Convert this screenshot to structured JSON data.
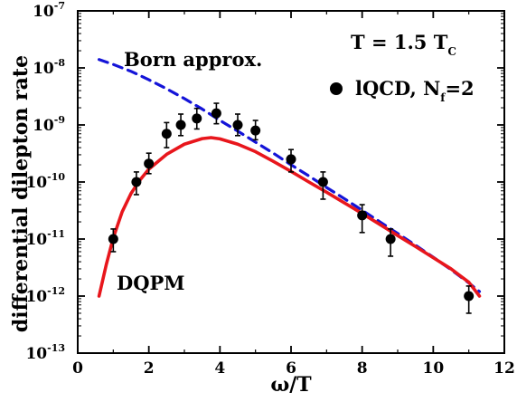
{
  "chart_data": {
    "type": "line",
    "title": "",
    "xlabel": "ω/T",
    "ylabel": "differential dilepton rate",
    "xlim": [
      0,
      12
    ],
    "ylim": [
      1e-13,
      1e-07
    ],
    "y_scale": "log",
    "grid": false,
    "x_ticks": [
      0,
      2,
      4,
      6,
      8,
      10,
      12
    ],
    "x_tick_labels": [
      "0",
      "2",
      "4",
      "6",
      "8",
      "10",
      "12"
    ],
    "y_ticks": [
      1e-13,
      1e-12,
      1e-11,
      1e-10,
      1e-09,
      1e-08,
      1e-07
    ],
    "y_tick_labels": [
      {
        "base": "10",
        "exp": "-13"
      },
      {
        "base": "10",
        "exp": "-12"
      },
      {
        "base": "10",
        "exp": "-11"
      },
      {
        "base": "10",
        "exp": "-10"
      },
      {
        "base": "10",
        "exp": "-9"
      },
      {
        "base": "10",
        "exp": "-8"
      },
      {
        "base": "10",
        "exp": "-7"
      }
    ],
    "series": [
      {
        "name": "Born approx.",
        "style": "dashed",
        "color": "#1414d8",
        "x": [
          0.6,
          1.0,
          1.5,
          2.0,
          2.5,
          3.0,
          3.5,
          4.0,
          4.5,
          5.0,
          5.5,
          6.0,
          6.5,
          7.0,
          7.5,
          8.0,
          8.5,
          9.0,
          9.5,
          10.0,
          10.5,
          11.0,
          11.3
        ],
        "y": [
          1.4e-08,
          1.15e-08,
          8.7e-09,
          6.2e-09,
          4.3e-09,
          2.9e-09,
          1.9e-09,
          1.2e-09,
          7.8e-10,
          5e-10,
          3.2e-10,
          2e-10,
          1.28e-10,
          8e-11,
          5.1e-11,
          3.2e-11,
          2e-11,
          1.25e-11,
          7.8e-12,
          4.8e-12,
          2.9e-12,
          1.7e-12,
          1.2e-12
        ]
      },
      {
        "name": "DQPM",
        "style": "solid",
        "color": "#e8161c",
        "x": [
          0.6,
          0.8,
          1.0,
          1.25,
          1.5,
          1.75,
          2.0,
          2.5,
          3.0,
          3.5,
          3.75,
          4.0,
          4.5,
          5.0,
          5.5,
          6.0,
          6.5,
          7.0,
          7.5,
          8.0,
          8.5,
          9.0,
          9.5,
          10.0,
          10.5,
          11.0,
          11.3
        ],
        "y": [
          1e-12,
          3.5e-12,
          1.05e-11,
          3e-11,
          6.3e-11,
          1.08e-10,
          1.68e-10,
          3.05e-10,
          4.6e-10,
          5.75e-10,
          6e-10,
          5.7e-10,
          4.6e-10,
          3.4e-10,
          2.3e-10,
          1.53e-10,
          1e-10,
          6.6e-11,
          4.3e-11,
          2.8e-11,
          1.8e-11,
          1.15e-11,
          7.4e-12,
          4.7e-12,
          3e-12,
          1.75e-12,
          1e-12
        ]
      },
      {
        "name": "lQCD, Nf=2",
        "style": "markers",
        "color": "#000000",
        "points": [
          {
            "x": 1.0,
            "y": 1e-11,
            "ylo": 6e-12,
            "yhi": 1.5e-11
          },
          {
            "x": 1.65,
            "y": 1e-10,
            "ylo": 6e-11,
            "yhi": 1.5e-10
          },
          {
            "x": 2.0,
            "y": 2.1e-10,
            "ylo": 1.4e-10,
            "yhi": 3.2e-10
          },
          {
            "x": 2.5,
            "y": 7e-10,
            "ylo": 4e-10,
            "yhi": 1.1e-09
          },
          {
            "x": 2.9,
            "y": 1e-09,
            "ylo": 6.5e-10,
            "yhi": 1.55e-09
          },
          {
            "x": 3.35,
            "y": 1.3e-09,
            "ylo": 8.5e-10,
            "yhi": 1.95e-09
          },
          {
            "x": 3.9,
            "y": 1.6e-09,
            "ylo": 1.05e-09,
            "yhi": 2.4e-09
          },
          {
            "x": 4.5,
            "y": 1e-09,
            "ylo": 6.5e-10,
            "yhi": 1.55e-09
          },
          {
            "x": 5.0,
            "y": 8e-10,
            "ylo": 5.5e-10,
            "yhi": 1.2e-09
          },
          {
            "x": 6.0,
            "y": 2.5e-10,
            "ylo": 1.5e-10,
            "yhi": 3.7e-10
          },
          {
            "x": 6.9,
            "y": 1e-10,
            "ylo": 5e-11,
            "yhi": 1.5e-10
          },
          {
            "x": 8.0,
            "y": 2.6e-11,
            "ylo": 1.3e-11,
            "yhi": 4e-11
          },
          {
            "x": 8.8,
            "y": 1e-11,
            "ylo": 5e-12,
            "yhi": 1.5e-11
          },
          {
            "x": 11.0,
            "y": 1e-12,
            "ylo": 5e-13,
            "yhi": 1.5e-12
          }
        ]
      }
    ],
    "annotations": {
      "born_label": "Born approx.",
      "dqpm_label": "DQPM",
      "temperature_main": "T = 1.5 T",
      "temperature_sub": "C",
      "lqcd_main": "lQCD, N",
      "lqcd_sub": "f",
      "lqcd_tail": "=2"
    },
    "colors": {
      "born": "#1414d8",
      "dqpm": "#e8161c",
      "points": "#000000"
    }
  }
}
